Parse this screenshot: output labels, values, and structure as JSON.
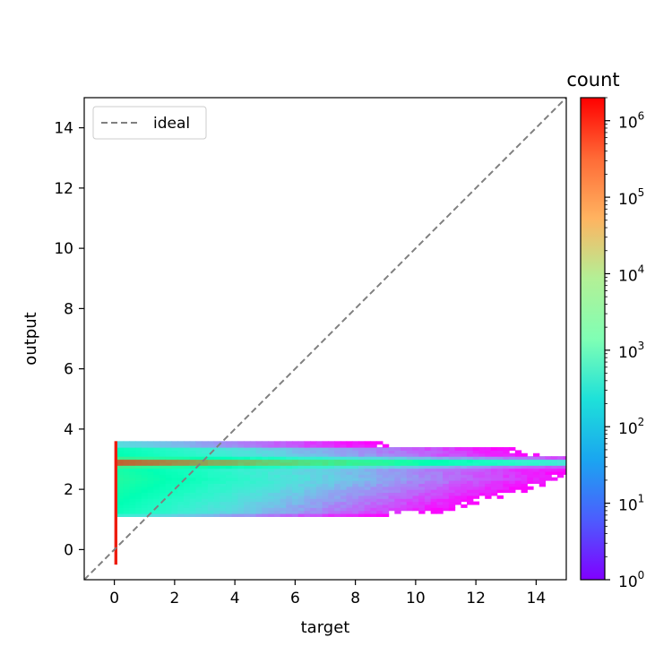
{
  "chart_data": {
    "type": "heatmap",
    "x_label": "target",
    "y_label": "output",
    "x_range": [
      -1,
      15
    ],
    "y_range": [
      -1,
      15
    ],
    "x_ticks": [
      "0",
      "2",
      "4",
      "6",
      "8",
      "10",
      "12",
      "14"
    ],
    "y_ticks": [
      "0",
      "2",
      "4",
      "6",
      "8",
      "10",
      "12",
      "14"
    ],
    "colormap": "rainbow",
    "color_scale": "log",
    "colorbar": {
      "title": "count",
      "range": [
        1,
        2000000
      ],
      "tick_bases": [
        "10",
        "10",
        "10",
        "10",
        "10",
        "10",
        "10"
      ],
      "tick_exponents": [
        "0",
        "1",
        "2",
        "3",
        "4",
        "5",
        "6"
      ]
    },
    "legend": {
      "position": "upper-left",
      "entries": [
        {
          "label": "ideal",
          "style": "dashed",
          "color": "#808080"
        }
      ]
    },
    "ideal_line": {
      "from": [
        -1,
        -1
      ],
      "to": [
        15,
        15
      ]
    },
    "histogram_bin_width": 0.2,
    "output_bin_height": 0.1,
    "zero_column": {
      "x": 0.05,
      "y_from": -0.5,
      "y_to": 3.6,
      "count": 1200000
    },
    "main_band": {
      "x_from": 0.1,
      "x_to": 15,
      "y_from": 1.1,
      "y_to": 3.6,
      "peak_output": 2.9,
      "peak_count_at_x0": 800000,
      "edge_count_at_x0": 1000,
      "count_at_x14": 200,
      "sparse_bins_beyond_target": 9
    }
  }
}
